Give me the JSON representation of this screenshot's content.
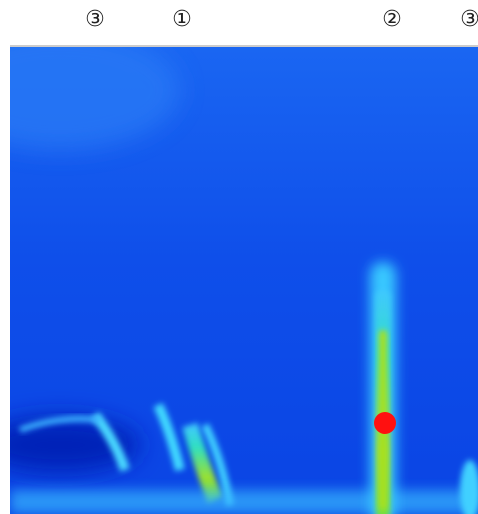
{
  "labels": [
    "③",
    "①",
    "②",
    "③"
  ]
}
